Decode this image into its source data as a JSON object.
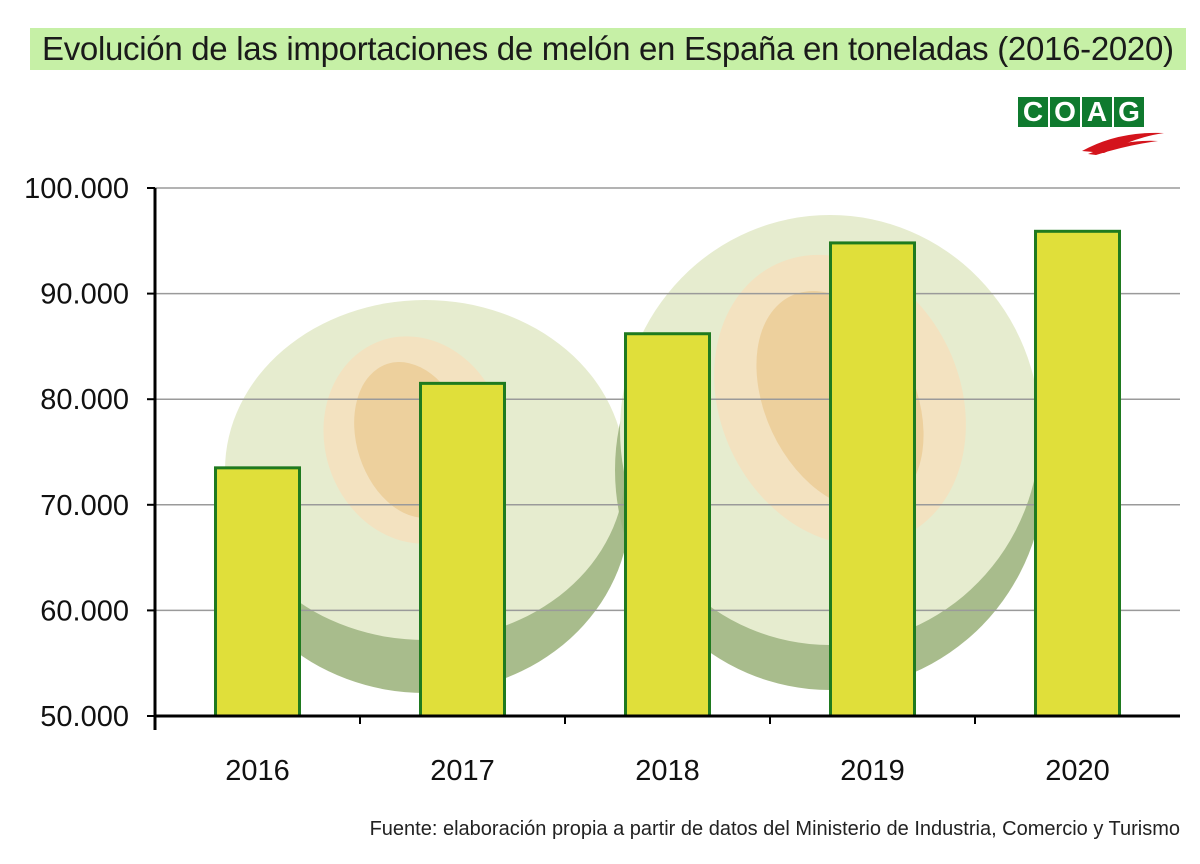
{
  "title": "Evolución de las importaciones de melón en España en toneladas (2016-2020)",
  "logo": {
    "letters": [
      "C",
      "O",
      "A",
      "G"
    ]
  },
  "source": "Fuente: elaboración propia a partir de datos del Ministerio de Industria, Comercio y Turismo",
  "colors": {
    "bar_fill": "#e0df3a",
    "bar_stroke": "#1f7a1f",
    "title_bg": "#c6f0a6",
    "logo_green": "#0f7a2e",
    "logo_red": "#d4141c",
    "melon_flesh": "#e6eccf",
    "melon_rind": "#8aa86a",
    "melon_seeds": "#e9c98f"
  },
  "chart_data": {
    "type": "bar",
    "title": "Evolución de las importaciones de melón en España en toneladas (2016-2020)",
    "categories": [
      "2016",
      "2017",
      "2018",
      "2019",
      "2020"
    ],
    "values": [
      73500,
      81500,
      86200,
      94800,
      95900
    ],
    "ylim": [
      50000,
      100000
    ],
    "yticks": [
      "50.000",
      "60.000",
      "70.000",
      "80.000",
      "90.000",
      "100.000"
    ],
    "ytick_values": [
      50000,
      60000,
      70000,
      80000,
      90000,
      100000
    ],
    "xlabel": "",
    "ylabel": "",
    "grid": true,
    "legend": "none"
  }
}
